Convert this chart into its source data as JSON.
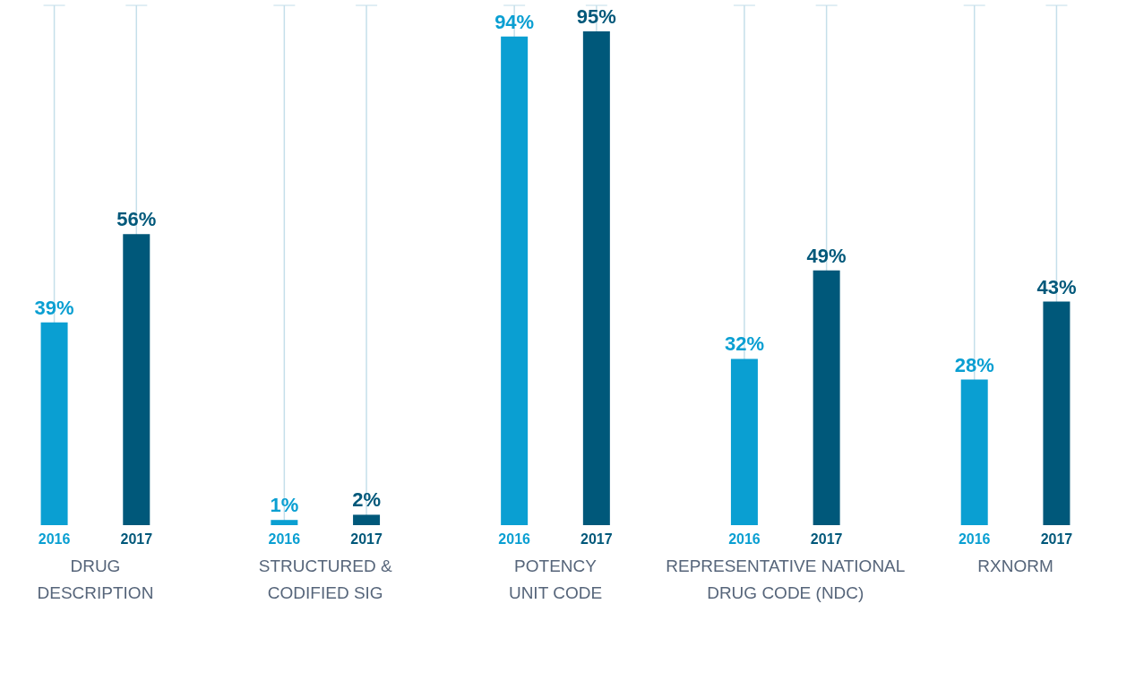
{
  "chart_data": {
    "type": "bar",
    "categories": [
      "DRUG\nDESCRIPTION",
      "STRUCTURED &\nCODIFIED SIG",
      "POTENCY\nUNIT CODE",
      "REPRESENTATIVE NATIONAL\nDRUG CODE (NDC)",
      "RXNORM"
    ],
    "series": [
      {
        "name": "2016",
        "color": "#0a9fd2",
        "values": [
          39,
          1,
          94,
          32,
          28
        ],
        "value_labels": [
          "39%",
          "1%",
          "94%",
          "32%",
          "28%"
        ]
      },
      {
        "name": "2017",
        "color": "#00587a",
        "values": [
          56,
          2,
          95,
          49,
          43
        ],
        "value_labels": [
          "56%",
          "2%",
          "95%",
          "49%",
          "43%"
        ]
      }
    ],
    "ylim": [
      0,
      100
    ],
    "tick_labels": "x",
    "grid": false,
    "legend": false
  }
}
